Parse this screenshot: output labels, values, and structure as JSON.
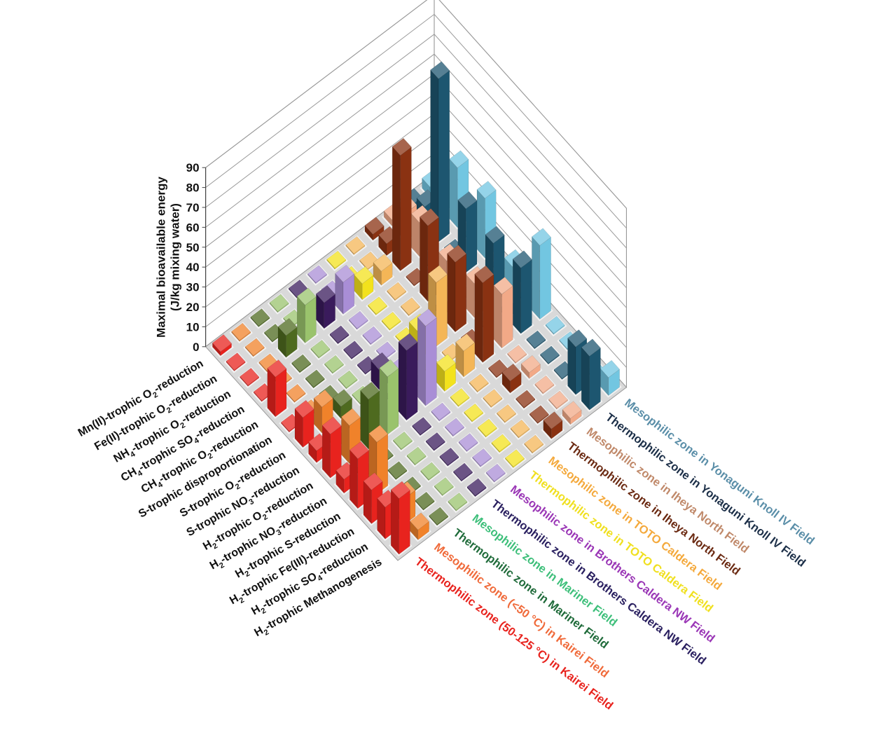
{
  "chart_data": {
    "type": "bar",
    "subtype": "3d-bar-matrix",
    "ylabel": "Maximal bioavailable energy",
    "ylabel_unit": "(J/kg mixing water)",
    "ylim": [
      0,
      90
    ],
    "yticks": [
      "0",
      "10",
      "20",
      "30",
      "40",
      "50",
      "60",
      "70",
      "80",
      "90"
    ],
    "categories": [
      {
        "id": "c1",
        "pre": "H",
        "sub1": "2",
        "mid": "-trophic Methanogenesis",
        "sub2": "",
        "post": ""
      },
      {
        "id": "c2",
        "pre": "H",
        "sub1": "2",
        "mid": "-trophic SO",
        "sub2": "4",
        "post": "-reduction"
      },
      {
        "id": "c3",
        "pre": "H",
        "sub1": "2",
        "mid": "-trophic Fe(III)-reduction",
        "sub2": "",
        "post": ""
      },
      {
        "id": "c4",
        "pre": "H",
        "sub1": "2",
        "mid": "-trophic S-reduction",
        "sub2": "",
        "post": ""
      },
      {
        "id": "c5",
        "pre": "H",
        "sub1": "2",
        "mid": "-trophic NO",
        "sub2": "3",
        "post": "-reduction"
      },
      {
        "id": "c6",
        "pre": "H",
        "sub1": "2",
        "mid": "-trophic O",
        "sub2": "2",
        "post": "-reduction"
      },
      {
        "id": "c7",
        "pre": "S-trophic NO",
        "sub1": "3",
        "mid": "-reduction",
        "sub2": "",
        "post": ""
      },
      {
        "id": "c8",
        "pre": "S-trophic O",
        "sub1": "2",
        "mid": "-reduction",
        "sub2": "",
        "post": ""
      },
      {
        "id": "c9",
        "pre": "S-trophic disproportionation",
        "sub1": "",
        "mid": "",
        "sub2": "",
        "post": ""
      },
      {
        "id": "c10",
        "pre": "CH",
        "sub1": "4",
        "mid": "-trophic O",
        "sub2": "2",
        "post": "-reduction"
      },
      {
        "id": "c11",
        "pre": "CH",
        "sub1": "4",
        "mid": "-trophic SO",
        "sub2": "4",
        "post": "-reduction"
      },
      {
        "id": "c12",
        "pre": "NH",
        "sub1": "4",
        "mid": "-trophic O",
        "sub2": "2",
        "post": "-reduction"
      },
      {
        "id": "c13",
        "pre": "Fe(II)-trophic O",
        "sub1": "2",
        "mid": "-reduction",
        "sub2": "",
        "post": ""
      },
      {
        "id": "c14",
        "pre": "Mn(II)-trophic O",
        "sub1": "2",
        "mid": "-reduction",
        "sub2": "",
        "post": ""
      }
    ],
    "series": [
      {
        "name": "Thermophilic zone (50-125 °C) in Kairei Field",
        "color": "#e8231e",
        "values": [
          28,
          16,
          17,
          25,
          7,
          22,
          6,
          15,
          0.5,
          20,
          0.5,
          0.5,
          0.5,
          2
        ]
      },
      {
        "name": "Mesophilic zone (<50 °C) in Kairei Field",
        "color": "#f0822a",
        "values": [
          5,
          13,
          0.5,
          26,
          0.5,
          19,
          0.5,
          13,
          0.5,
          0.5,
          0.5,
          0.5,
          0.5,
          0.5
        ]
      },
      {
        "name": "Thermophilic zone in Mariner Field",
        "color": "#4e6a1f",
        "values": [
          0.5,
          0.5,
          0.5,
          0.5,
          0.5,
          25,
          0.5,
          6,
          0.5,
          0.5,
          0.5,
          11,
          0.5,
          0.5
        ]
      },
      {
        "name": "Mesophilic zone in Mariner Field",
        "color": "#9ac36c",
        "values": [
          0.5,
          0.5,
          0.5,
          0.5,
          0.5,
          29,
          0.5,
          0.5,
          0.5,
          0.5,
          0.5,
          19,
          0.5,
          0.5
        ]
      },
      {
        "name": "Thermophilic zone in Brothers Caldera NW Field",
        "color": "#3a1b5c",
        "values": [
          0.5,
          0.5,
          0.5,
          0.5,
          0.5,
          35,
          0.5,
          10,
          0.5,
          0.5,
          0.5,
          13,
          0.5,
          0.5
        ]
      },
      {
        "name": "Mesophilic zone in Brothers Caldera NW Field",
        "color": "#a98ed6",
        "values": [
          0.5,
          0.5,
          0.5,
          0.5,
          0.5,
          40,
          0.5,
          0.5,
          0.5,
          0.5,
          0.5,
          16,
          0.5,
          0.5
        ]
      },
      {
        "name": "Thermophilic zone in TOTO Caldera Field",
        "color": "#f3e21c",
        "values": [
          0.5,
          0.5,
          0.5,
          0.5,
          0.5,
          10,
          0.5,
          15,
          0.5,
          0.5,
          0.5,
          8,
          0.5,
          0.5
        ]
      },
      {
        "name": "Mesophilic zone in TOTO Caldera Field",
        "color": "#f4b657",
        "values": [
          0.5,
          0.5,
          0.5,
          0.5,
          0.5,
          13,
          0.5,
          32,
          0.5,
          0.5,
          0.5,
          7,
          0.5,
          0.5
        ]
      },
      {
        "name": "Thermophilic zone in Iheya North Field",
        "color": "#8a3212",
        "values": [
          5,
          0.5,
          0.5,
          6,
          0.5,
          40,
          0.5,
          35,
          0.5,
          38,
          0.5,
          58,
          6,
          3
        ]
      },
      {
        "name": "Mesophilic zone in Iheya North Field",
        "color": "#f2a987",
        "values": [
          3,
          0.5,
          0.5,
          3,
          0.5,
          27,
          0.5,
          17,
          0.5,
          13,
          0.5,
          17,
          14,
          3
        ]
      },
      {
        "name": "Thermophilic zone in Yonaguni Knoll IV Field",
        "color": "#1d5670",
        "values": [
          27,
          24,
          0.5,
          0.5,
          0.5,
          33,
          0.5,
          30,
          0.5,
          32,
          0.5,
          82,
          10,
          3
        ]
      },
      {
        "name": "Mesophilic zone in Yonaguni Knoll IV Field",
        "color": "#72c6e1",
        "values": [
          9,
          0.5,
          0.5,
          0.5,
          0.5,
          37,
          0.5,
          11,
          0.5,
          30,
          0.5,
          30,
          14,
          5
        ]
      }
    ],
    "series_label_colors": [
      "#e8231e",
      "#f06a3a",
      "#1f6b3a",
      "#3dbf7a",
      "#2a2060",
      "#9a36b6",
      "#f0e020",
      "#f4a93c",
      "#6b2a12",
      "#c0896a",
      "#1c2f48",
      "#5a8ea8"
    ],
    "grid": true,
    "legend": "axis-labels"
  }
}
